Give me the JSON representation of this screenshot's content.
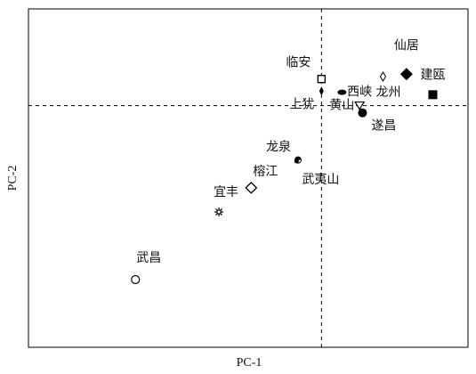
{
  "chart_data": {
    "type": "scatter",
    "xlabel": "PC-1",
    "ylabel": "PC-2",
    "xlim": [
      -1.0,
      0.5
    ],
    "ylim": [
      -1.0,
      0.4
    ],
    "grid": false,
    "reference_lines": {
      "x": 0,
      "y": 0
    },
    "points": [
      {
        "name": "仙居",
        "x": 0.29,
        "y": 0.13,
        "marker": "diamond-filled"
      },
      {
        "name": "建瓯",
        "x": 0.38,
        "y": 0.045,
        "marker": "square-filled"
      },
      {
        "name": "龙州",
        "x": 0.21,
        "y": 0.12,
        "marker": "diamond-open-small"
      },
      {
        "name": "临安",
        "x": 0.0,
        "y": 0.11,
        "marker": "square-open"
      },
      {
        "name": "上犹",
        "x": 0.0,
        "y": 0.06,
        "marker": "diamond-filled-small"
      },
      {
        "name": "黄山",
        "x": 0.07,
        "y": 0.055,
        "marker": "ellipse-filled"
      },
      {
        "name": "西峡",
        "x": 0.13,
        "y": 0.0,
        "marker": "triangle-down-open"
      },
      {
        "name": "遂昌",
        "x": 0.14,
        "y": -0.03,
        "marker": "circle-filled"
      },
      {
        "name": "龙泉",
        "x": -0.08,
        "y": -0.225,
        "marker": "half-filled-circle"
      },
      {
        "name": "武夷山",
        "x": -0.085,
        "y": -0.23,
        "marker": "circle-filled-small"
      },
      {
        "name": "榕江",
        "x": -0.24,
        "y": -0.34,
        "marker": "diamond-open"
      },
      {
        "name": "宜丰",
        "x": -0.35,
        "y": -0.44,
        "marker": "star-open"
      },
      {
        "name": "武昌",
        "x": -0.635,
        "y": -0.72,
        "marker": "circle-open"
      }
    ]
  }
}
